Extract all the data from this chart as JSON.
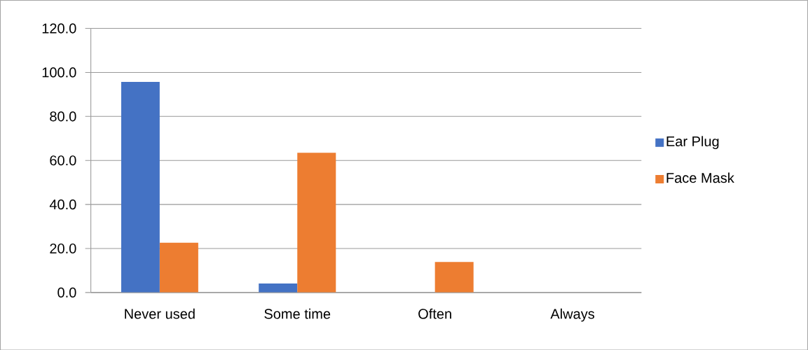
{
  "chart_data": {
    "type": "bar",
    "categories": [
      "Never used",
      "Some time",
      "Often",
      "Always"
    ],
    "series": [
      {
        "name": "Ear Plug",
        "color": "#4472c4",
        "values": [
          95.7,
          4.1,
          0,
          0
        ]
      },
      {
        "name": "Face Mask",
        "color": "#ed7d31",
        "values": [
          22.6,
          63.5,
          13.9,
          0
        ]
      }
    ],
    "ylim": [
      0,
      120
    ],
    "yticks": [
      {
        "value": 0,
        "label": "0.0"
      },
      {
        "value": 20,
        "label": "20.0"
      },
      {
        "value": 40,
        "label": "40.0"
      },
      {
        "value": 60,
        "label": "60.0"
      },
      {
        "value": 80,
        "label": "80.0"
      },
      {
        "value": 100,
        "label": "100.0"
      },
      {
        "value": 120,
        "label": "120.0"
      }
    ],
    "grid": "y",
    "legend": "right"
  }
}
